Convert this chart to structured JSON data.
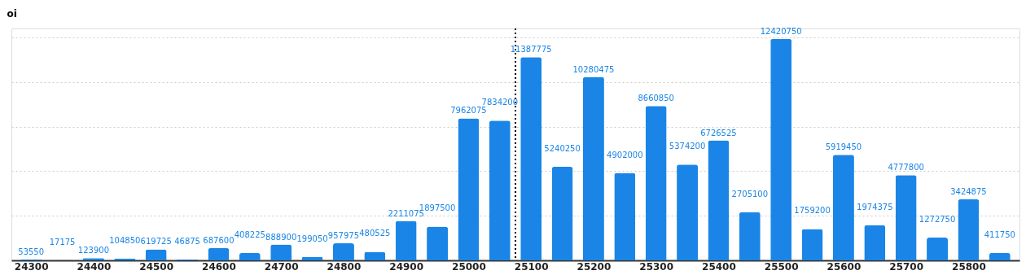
{
  "chart_data": {
    "type": "bar",
    "ylabel": "oi",
    "x": [
      24300,
      24350,
      24400,
      24450,
      24500,
      24550,
      24600,
      24650,
      24700,
      24750,
      24800,
      24850,
      24900,
      24950,
      25000,
      25050,
      25100,
      25150,
      25200,
      25250,
      25300,
      25350,
      25400,
      25450,
      25500,
      25550,
      25600,
      25650,
      25700,
      25750,
      25800,
      25850
    ],
    "series": [
      {
        "color": "#1a85e6",
        "values": [
          53550,
          17175,
          123900,
          104850,
          619725,
          46875,
          687600,
          408225,
          888900,
          199050,
          957975,
          480525,
          2211075,
          1897500,
          7962075,
          7834200,
          11387775,
          5240250,
          10280475,
          4902000,
          8660850,
          5374200,
          6726525,
          2705100,
          12420750,
          1759200,
          5919450,
          1974375,
          4777800,
          1272750,
          3424875,
          411750
        ]
      }
    ],
    "xlim": [
      24275,
      25875
    ],
    "xticks": [
      24300,
      24400,
      24500,
      24600,
      24700,
      24800,
      24900,
      25000,
      25100,
      25200,
      25300,
      25400,
      25500,
      25600,
      25700,
      25800
    ],
    "ylim": [
      0,
      13000000
    ],
    "yticks": [
      {
        "value": 0,
        "label": null
      },
      {
        "value": 2500000,
        "label": null
      },
      {
        "value": 5000000,
        "label": null
      },
      {
        "value": 7500000,
        "label": null
      },
      {
        "value": 10000000,
        "label": null
      },
      {
        "value": 12500000,
        "label": null
      }
    ],
    "tick_labels": "x",
    "grid": "y",
    "data_labels": true,
    "ref_lines": [
      {
        "axis": "x",
        "value": 25075,
        "line_style": "dotted",
        "color": "#000000"
      }
    ]
  }
}
